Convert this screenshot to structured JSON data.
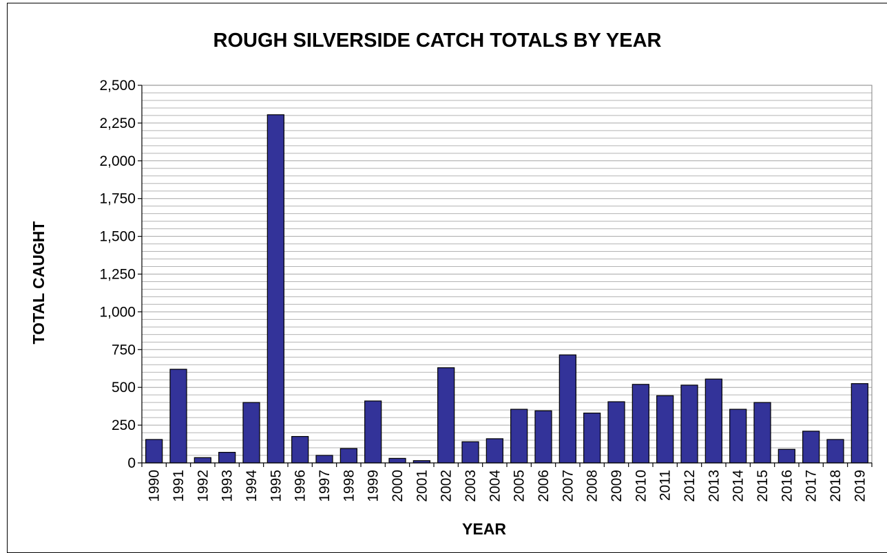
{
  "chart_data": {
    "type": "bar",
    "title": "ROUGH SILVERSIDE CATCH TOTALS BY YEAR",
    "xlabel": "YEAR",
    "ylabel": "TOTAL CAUGHT",
    "ylim": [
      0,
      2500
    ],
    "yticks": [
      0,
      250,
      500,
      750,
      1000,
      1250,
      1500,
      1750,
      2000,
      2250,
      2500
    ],
    "ytick_labels": [
      "0",
      "250",
      "500",
      "750",
      "1,000",
      "1,250",
      "1,500",
      "1,750",
      "2,000",
      "2,250",
      "2,500"
    ],
    "grid": true,
    "bar_color": "#333399",
    "plot_background": "#ffffff",
    "grid_color": "#b3b3b3",
    "categories": [
      "1990",
      "1991",
      "1992",
      "1993",
      "1994",
      "1995",
      "1996",
      "1997",
      "1998",
      "1999",
      "2000",
      "2001",
      "2002",
      "2003",
      "2004",
      "2005",
      "2006",
      "2007",
      "2008",
      "2009",
      "2010",
      "2011",
      "2012",
      "2013",
      "2014",
      "2015",
      "2016",
      "2017",
      "2018",
      "2019"
    ],
    "values": [
      155,
      620,
      35,
      70,
      400,
      2305,
      175,
      50,
      95,
      410,
      30,
      15,
      630,
      140,
      160,
      355,
      345,
      715,
      330,
      405,
      520,
      445,
      515,
      555,
      355,
      400,
      90,
      210,
      155,
      525
    ]
  }
}
